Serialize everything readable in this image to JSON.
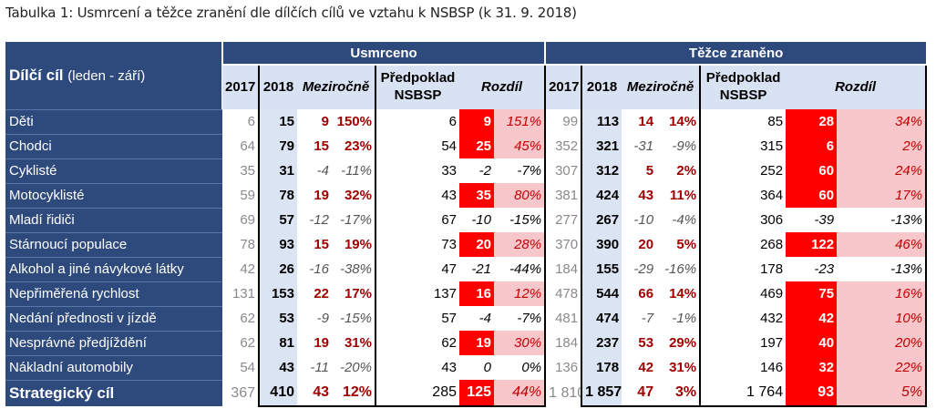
{
  "caption": "Tabulka 1: Usmrcení a těžce zranění dle dílčích cílů ve vztahu k NSBSP (k 31. 9. 2018)",
  "header": {
    "corner_bold": "Dílčí cíl",
    "corner_light": "(leden - září)",
    "group_usmrceno": "Usmrceno",
    "group_tezce": "Těžce zraněno",
    "col_2017": "2017",
    "col_2018": "2018",
    "col_mezirocne": "Meziročně",
    "col_predpoklad_1": "Předpoklad",
    "col_predpoklad_2": "NSBSP",
    "col_rozdil": "Rozdíl"
  },
  "rows": [
    {
      "name": "Děti",
      "u2017": "6",
      "u2018": "15",
      "umd": "9",
      "ump": "150%",
      "upred": "6",
      "urv": "9",
      "urp": "151%",
      "t2017": "99",
      "t2018": "113",
      "tmd": "14",
      "tmp": "14%",
      "tpred": "85",
      "trv": "28",
      "trp": "34%"
    },
    {
      "name": "Chodci",
      "u2017": "64",
      "u2018": "79",
      "umd": "15",
      "ump": "23%",
      "upred": "54",
      "urv": "25",
      "urp": "45%",
      "t2017": "352",
      "t2018": "321",
      "tmd": "-31",
      "tmp": "-9%",
      "tpred": "315",
      "trv": "6",
      "trp": "2%"
    },
    {
      "name": "Cyklisté",
      "u2017": "35",
      "u2018": "31",
      "umd": "-4",
      "ump": "-11%",
      "upred": "33",
      "urv": "-2",
      "urp": "-7%",
      "t2017": "307",
      "t2018": "312",
      "tmd": "5",
      "tmp": "2%",
      "tpred": "252",
      "trv": "60",
      "trp": "24%"
    },
    {
      "name": "Motocyklisté",
      "u2017": "59",
      "u2018": "78",
      "umd": "19",
      "ump": "32%",
      "upred": "43",
      "urv": "35",
      "urp": "80%",
      "t2017": "381",
      "t2018": "424",
      "tmd": "43",
      "tmp": "11%",
      "tpred": "364",
      "trv": "60",
      "trp": "17%"
    },
    {
      "name": "Mladí řidiči",
      "u2017": "69",
      "u2018": "57",
      "umd": "-12",
      "ump": "-17%",
      "upred": "67",
      "urv": "-10",
      "urp": "-15%",
      "t2017": "277",
      "t2018": "267",
      "tmd": "-10",
      "tmp": "-4%",
      "tpred": "306",
      "trv": "-39",
      "trp": "-13%"
    },
    {
      "name": "Stárnoucí populace",
      "u2017": "78",
      "u2018": "93",
      "umd": "15",
      "ump": "19%",
      "upred": "73",
      "urv": "20",
      "urp": "28%",
      "t2017": "370",
      "t2018": "390",
      "tmd": "20",
      "tmp": "5%",
      "tpred": "268",
      "trv": "122",
      "trp": "46%"
    },
    {
      "name": "Alkohol a jiné návykové látky",
      "u2017": "42",
      "u2018": "26",
      "umd": "-16",
      "ump": "-38%",
      "upred": "47",
      "urv": "-21",
      "urp": "-44%",
      "t2017": "184",
      "t2018": "155",
      "tmd": "-29",
      "tmp": "-16%",
      "tpred": "178",
      "trv": "-23",
      "trp": "-13%"
    },
    {
      "name": "Nepřiměřená rychlost",
      "u2017": "131",
      "u2018": "153",
      "umd": "22",
      "ump": "17%",
      "upred": "137",
      "urv": "16",
      "urp": "12%",
      "t2017": "478",
      "t2018": "544",
      "tmd": "66",
      "tmp": "14%",
      "tpred": "469",
      "trv": "75",
      "trp": "16%"
    },
    {
      "name": "Nedání přednosti v jízdě",
      "u2017": "62",
      "u2018": "53",
      "umd": "-9",
      "ump": "-15%",
      "upred": "57",
      "urv": "-4",
      "urp": "-7%",
      "t2017": "481",
      "t2018": "474",
      "tmd": "-7",
      "tmp": "-1%",
      "tpred": "432",
      "trv": "42",
      "trp": "10%"
    },
    {
      "name": "Nesprávné předjíždění",
      "u2017": "62",
      "u2018": "81",
      "umd": "19",
      "ump": "31%",
      "upred": "62",
      "urv": "19",
      "urp": "30%",
      "t2017": "184",
      "t2018": "237",
      "tmd": "53",
      "tmp": "29%",
      "tpred": "197",
      "trv": "40",
      "trp": "20%"
    },
    {
      "name": "Nákladní automobily",
      "u2017": "54",
      "u2018": "43",
      "umd": "-11",
      "ump": "-20%",
      "upred": "43",
      "urv": "0",
      "urp": "0%",
      "t2017": "136",
      "t2018": "178",
      "tmd": "42",
      "tmp": "31%",
      "tpred": "146",
      "trv": "32",
      "trp": "22%"
    }
  ],
  "total": {
    "name": "Strategický cíl",
    "u2017": "367",
    "u2018": "410",
    "umd": "43",
    "ump": "12%",
    "upred": "285",
    "urv": "125",
    "urp": "44%",
    "t2017": "1 810",
    "t2018": "1 857",
    "tmd": "47",
    "tmp": "3%",
    "tpred": "1 764",
    "trv": "93",
    "trp": "5%"
  },
  "colors": {
    "header_dark": "#2e4a7d",
    "highlight_red": "#ff0000",
    "light_red": "#f8c7cc",
    "light_blue": "#dbe4f3",
    "positive_text": "#a00000"
  }
}
